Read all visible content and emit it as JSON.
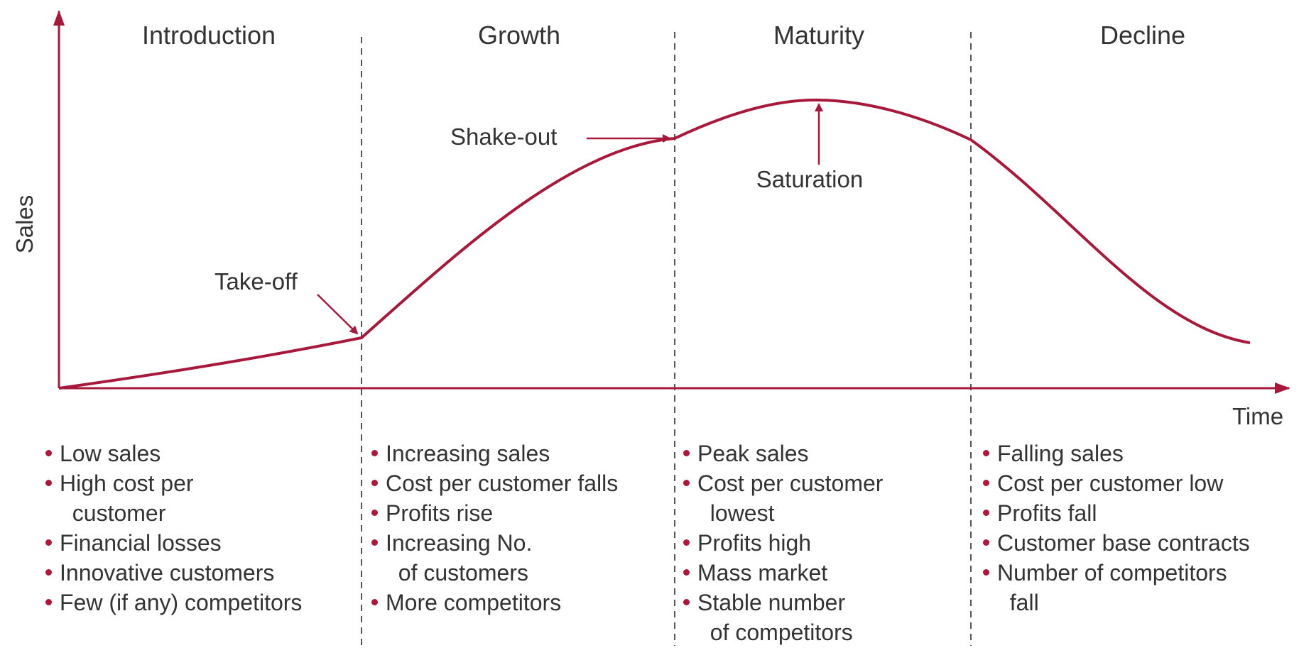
{
  "colors": {
    "curve": "#a8183a",
    "bullet": "#b0163a",
    "axis": "#a8183a",
    "divider": "#555555",
    "text": "#333333"
  },
  "axes": {
    "y_label": "Sales",
    "x_label": "Time"
  },
  "stages": [
    {
      "title": "Introduction",
      "bullets": [
        "Low sales",
        "High cost per\n  customer",
        "Financial losses",
        "Innovative customers",
        "Few (if any) competitors"
      ]
    },
    {
      "title": "Growth",
      "bullets": [
        "Increasing sales",
        "Cost per customer falls",
        "Profits rise",
        "Increasing No.\n  of customers",
        "More competitors"
      ]
    },
    {
      "title": "Maturity",
      "bullets": [
        "Peak sales",
        "Cost per customer\n  lowest",
        "Profits high",
        "Mass market",
        "Stable number\n  of competitors"
      ]
    },
    {
      "title": "Decline",
      "bullets": [
        "Falling sales",
        "Cost per customer low",
        "Profits fall",
        "Customer base contracts",
        "Number of competitors\n  fall"
      ]
    }
  ],
  "annotations": {
    "take_off": "Take-off",
    "shake_out": "Shake-out",
    "saturation": "Saturation"
  }
}
